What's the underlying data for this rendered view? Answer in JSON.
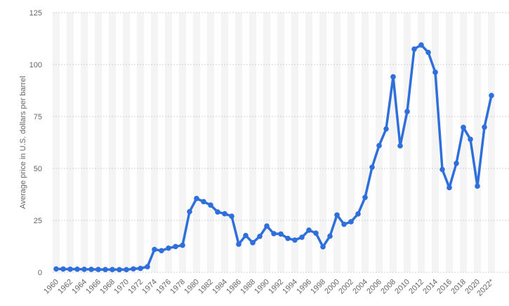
{
  "chart_data": {
    "type": "line",
    "y_label": "Average price in U.S. dollars per barrel",
    "categories": [
      "1960",
      null,
      "1962",
      null,
      "1964",
      null,
      "1966",
      null,
      "1968",
      null,
      "1970",
      null,
      "1972",
      null,
      "1974",
      null,
      "1976",
      null,
      "1978",
      null,
      "1980",
      null,
      "1982",
      null,
      "1984",
      null,
      "1986",
      null,
      "1988",
      null,
      "1990",
      null,
      "1992",
      null,
      "1994",
      null,
      "1996",
      null,
      "1998",
      null,
      "2000",
      null,
      "2002",
      null,
      "2004",
      null,
      "2006",
      null,
      "2008",
      null,
      "2010",
      null,
      "2012",
      null,
      "2014",
      null,
      "2016",
      null,
      "2018",
      null,
      "2020",
      null,
      "2022*"
    ],
    "series": [
      {
        "name": "Average price",
        "color": "#2f6fdb",
        "values": [
          1.63,
          1.57,
          1.52,
          1.5,
          1.45,
          1.42,
          1.36,
          1.33,
          1.32,
          1.29,
          1.3,
          1.65,
          1.9,
          2.7,
          11,
          10.43,
          11.63,
          12.38,
          13.03,
          29.19,
          35.52,
          34,
          32.38,
          29.04,
          28.2,
          27.01,
          13.53,
          17.73,
          14.24,
          17.31,
          22.26,
          18.62,
          18.44,
          16.33,
          15.53,
          16.86,
          20.29,
          18.86,
          12.28,
          17.44,
          27.6,
          23.12,
          24.36,
          28.1,
          36.05,
          50.59,
          61,
          69.04,
          94.1,
          60.86,
          77.38,
          107.46,
          109.45,
          105.87,
          96.29,
          49.49,
          40.76,
          52.43,
          69.78,
          64.04,
          41.47,
          69.89,
          85.13
        ]
      }
    ],
    "ylim": [
      0,
      125
    ],
    "yticks": [
      0,
      25,
      50,
      75,
      100,
      125
    ],
    "grid": true
  }
}
